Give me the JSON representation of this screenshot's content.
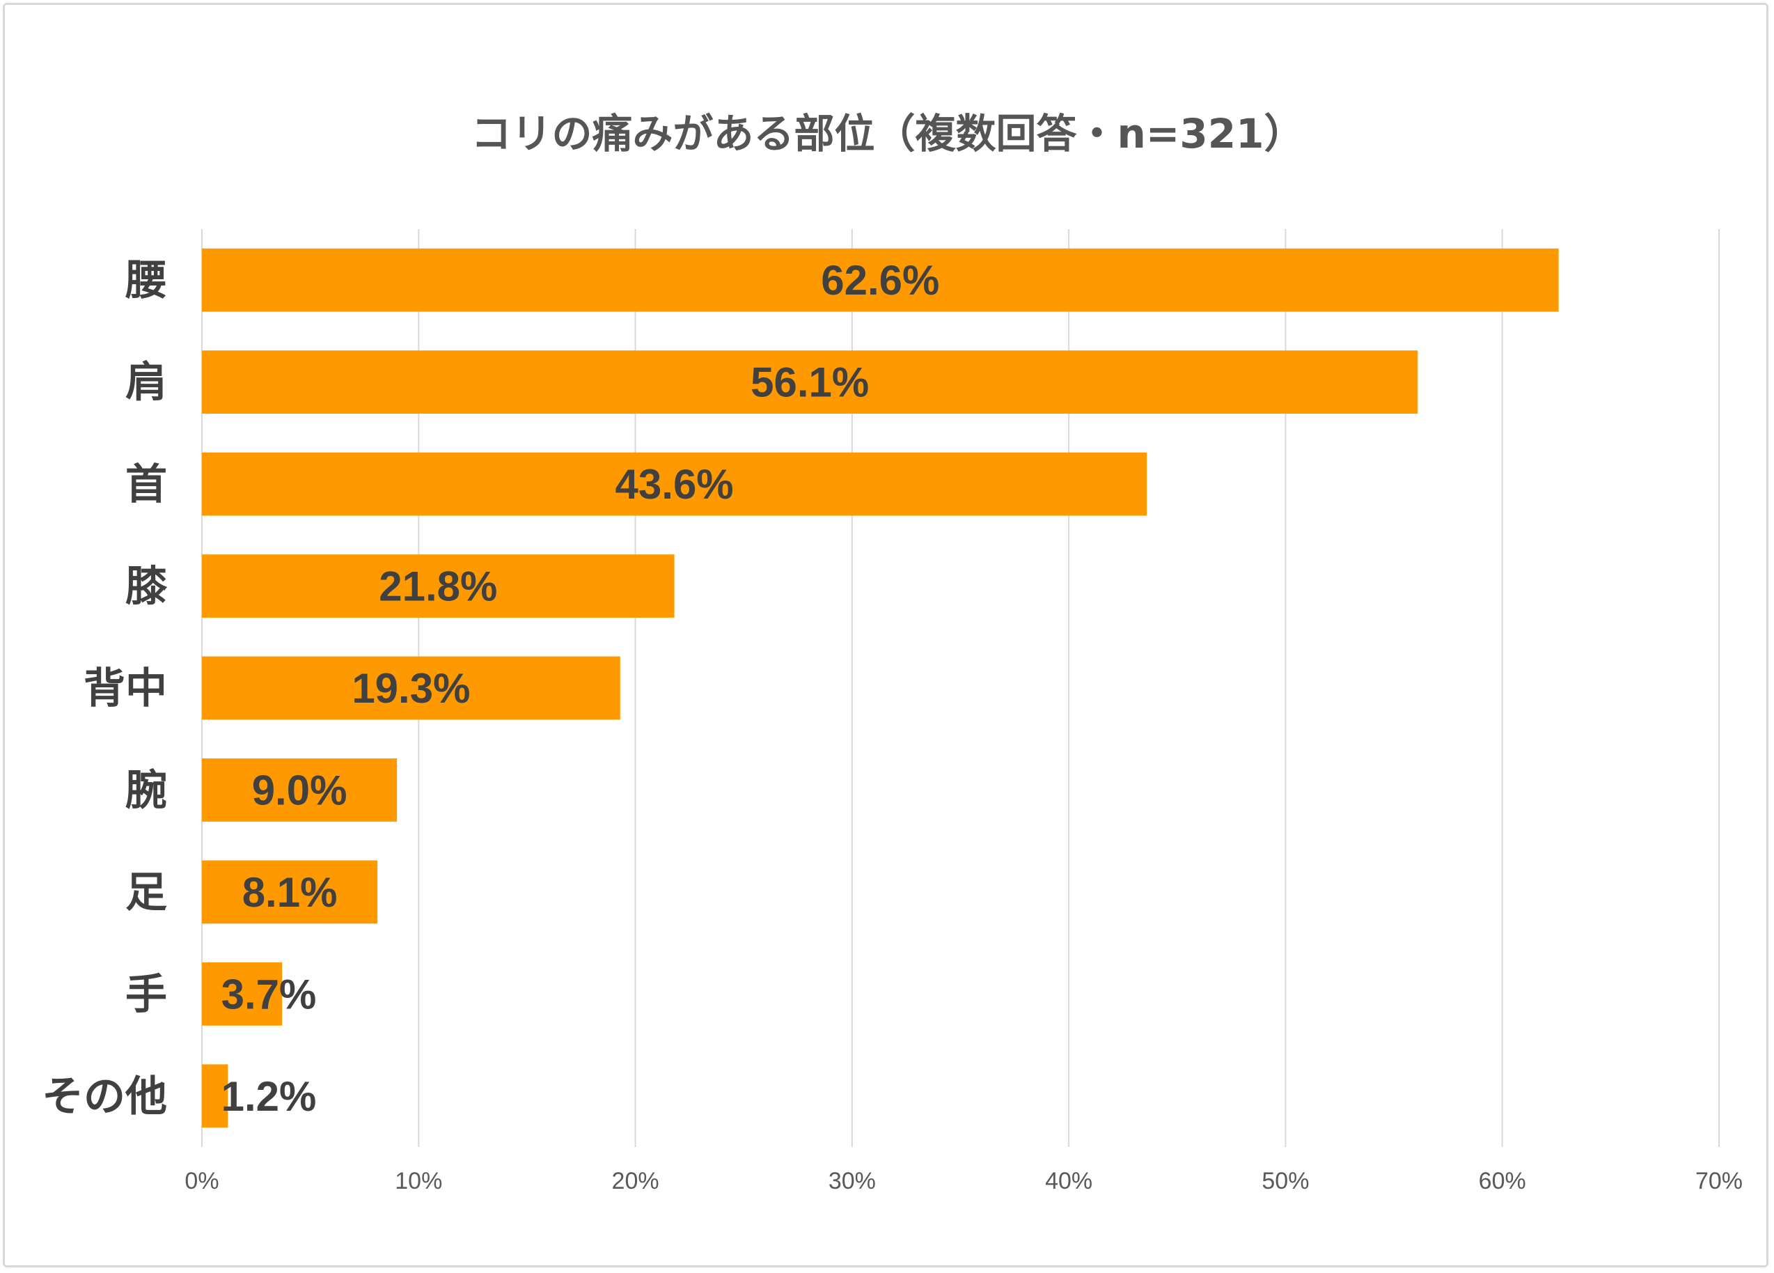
{
  "chart_data": {
    "type": "bar",
    "orientation": "horizontal",
    "title": "コリの痛みがある部位（複数回答・n=321）",
    "categories": [
      "腰",
      "肩",
      "首",
      "膝",
      "背中",
      "腕",
      "足",
      "手",
      "その他"
    ],
    "values": [
      62.6,
      56.1,
      43.6,
      21.8,
      19.3,
      9.0,
      8.1,
      3.7,
      1.2
    ],
    "data_labels": [
      "62.6%",
      "56.1%",
      "43.6%",
      "21.8%",
      "19.3%",
      "9.0%",
      "8.1%",
      "3.7%",
      "1.2%"
    ],
    "xlim": [
      0,
      70
    ],
    "x_ticks": [
      0,
      10,
      20,
      30,
      40,
      50,
      60,
      70
    ],
    "x_tick_labels": [
      "0%",
      "10%",
      "20%",
      "30%",
      "40%",
      "50%",
      "60%",
      "70%"
    ],
    "grid": true,
    "legend": "none",
    "colors": {
      "bar": "#ff9900",
      "grid": "#d9d9d9",
      "title": "#555555",
      "label": "#404040",
      "tick": "#595959"
    }
  }
}
